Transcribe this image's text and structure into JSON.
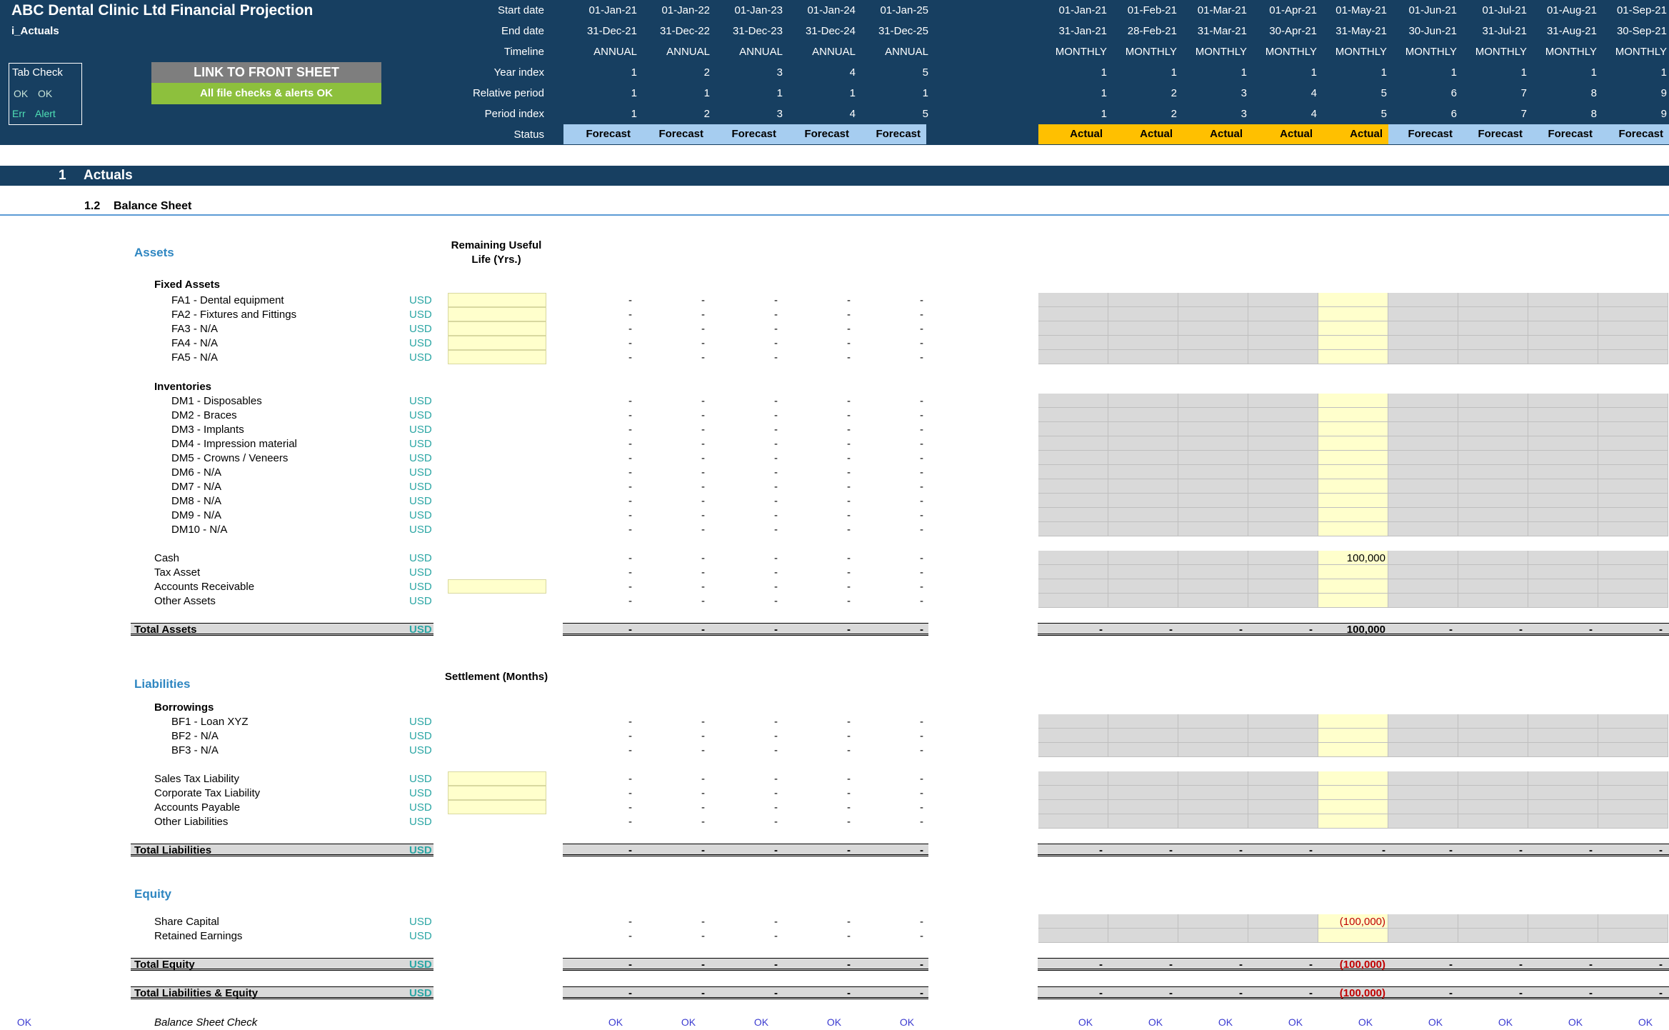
{
  "header": {
    "title": "ABC Dental Clinic Ltd Financial Projection",
    "sheet": "i_Actuals",
    "row_labels": [
      "Start date",
      "End date",
      "Timeline",
      "Year index",
      "Relative period",
      "Period index",
      "Status"
    ],
    "annual": [
      {
        "start": "01-Jan-21",
        "end": "31-Dec-21",
        "timeline": "ANNUAL",
        "year": "1",
        "rel": "1",
        "period": "1",
        "status": "Forecast"
      },
      {
        "start": "01-Jan-22",
        "end": "31-Dec-22",
        "timeline": "ANNUAL",
        "year": "2",
        "rel": "1",
        "period": "2",
        "status": "Forecast"
      },
      {
        "start": "01-Jan-23",
        "end": "31-Dec-23",
        "timeline": "ANNUAL",
        "year": "3",
        "rel": "1",
        "period": "3",
        "status": "Forecast"
      },
      {
        "start": "01-Jan-24",
        "end": "31-Dec-24",
        "timeline": "ANNUAL",
        "year": "4",
        "rel": "1",
        "period": "4",
        "status": "Forecast"
      },
      {
        "start": "01-Jan-25",
        "end": "31-Dec-25",
        "timeline": "ANNUAL",
        "year": "5",
        "rel": "1",
        "period": "5",
        "status": "Forecast"
      }
    ],
    "monthly": [
      {
        "start": "01-Jan-21",
        "end": "31-Jan-21",
        "timeline": "MONTHLY",
        "year": "1",
        "rel": "1",
        "period": "1",
        "status": "Actual"
      },
      {
        "start": "01-Feb-21",
        "end": "28-Feb-21",
        "timeline": "MONTHLY",
        "year": "1",
        "rel": "2",
        "period": "2",
        "status": "Actual"
      },
      {
        "start": "01-Mar-21",
        "end": "31-Mar-21",
        "timeline": "MONTHLY",
        "year": "1",
        "rel": "3",
        "period": "3",
        "status": "Actual"
      },
      {
        "start": "01-Apr-21",
        "end": "30-Apr-21",
        "timeline": "MONTHLY",
        "year": "1",
        "rel": "4",
        "period": "4",
        "status": "Actual"
      },
      {
        "start": "01-May-21",
        "end": "31-May-21",
        "timeline": "MONTHLY",
        "year": "1",
        "rel": "5",
        "period": "5",
        "status": "Actual"
      },
      {
        "start": "01-Jun-21",
        "end": "30-Jun-21",
        "timeline": "MONTHLY",
        "year": "1",
        "rel": "6",
        "period": "6",
        "status": "Forecast"
      },
      {
        "start": "01-Jul-21",
        "end": "31-Jul-21",
        "timeline": "MONTHLY",
        "year": "1",
        "rel": "7",
        "period": "7",
        "status": "Forecast"
      },
      {
        "start": "01-Aug-21",
        "end": "31-Aug-21",
        "timeline": "MONTHLY",
        "year": "1",
        "rel": "8",
        "period": "8",
        "status": "Forecast"
      },
      {
        "start": "01-Sep-21",
        "end": "30-Sep-21",
        "timeline": "MONTHLY",
        "year": "1",
        "rel": "9",
        "period": "9",
        "status": "Forecast"
      }
    ],
    "tab_check": {
      "title": "Tab Check",
      "ok1": "OK",
      "ok2": "OK",
      "err": "Err",
      "alert": "Alert"
    },
    "link_button": "LINK TO FRONT SHEET",
    "checks_status": "All file checks & alerts OK"
  },
  "colors": {
    "header_bg": "#173f61",
    "forecast": "#a6cdf0",
    "actual": "#ffc000",
    "input": "#ffffcc",
    "grey": "#d9d9d9",
    "ok_green": "#8dc03d",
    "negative": "#c00000"
  },
  "section": {
    "number": "1",
    "title": "Actuals",
    "sub_number": "1.2",
    "sub_title": "Balance Sheet"
  },
  "assets": {
    "title": "Assets",
    "col_header": "Remaining Useful Life (Yrs.)",
    "fixed_title": "Fixed Assets",
    "fixed": [
      "FA1 - Dental equipment",
      "FA2 - Fixtures and Fittings",
      "FA3 - N/A",
      "FA4 - N/A",
      "FA5 - N/A"
    ],
    "inv_title": "Inventories",
    "inventories": [
      "DM1 - Disposables",
      "DM2 - Braces",
      "DM3 - Implants",
      "DM4 - Impression material",
      "DM5 - Crowns / Veneers",
      "DM6 - N/A",
      "DM7 - N/A",
      "DM8 - N/A",
      "DM9 - N/A",
      "DM10 - N/A"
    ],
    "other": [
      "Cash",
      "Tax Asset",
      "Accounts Receivable",
      "Other Assets"
    ],
    "cash_may": "100,000",
    "total_label": "Total Assets",
    "total_may": "100,000"
  },
  "liabilities": {
    "title": "Liabilities",
    "col_header": "Settlement (Months)",
    "borrow_title": "Borrowings",
    "borrowings": [
      "BF1 - Loan XYZ",
      "BF2 - N/A",
      "BF3 - N/A"
    ],
    "other": [
      "Sales Tax Liability",
      "Corporate Tax Liability",
      "Accounts Payable",
      "Other Liabilities"
    ],
    "total_label": "Total Liabilities",
    "total_may": "-"
  },
  "equity": {
    "title": "Equity",
    "items": [
      "Share Capital",
      "Retained Earnings"
    ],
    "share_may": "(100,000)",
    "total_label": "Total Equity",
    "total_may": "(100,000)",
    "tle_label": "Total Liabilities & Equity",
    "tle_may": "(100,000)"
  },
  "check": {
    "label": "Balance Sheet Check",
    "ok": "OK"
  },
  "unit": "USD",
  "dash": "-"
}
